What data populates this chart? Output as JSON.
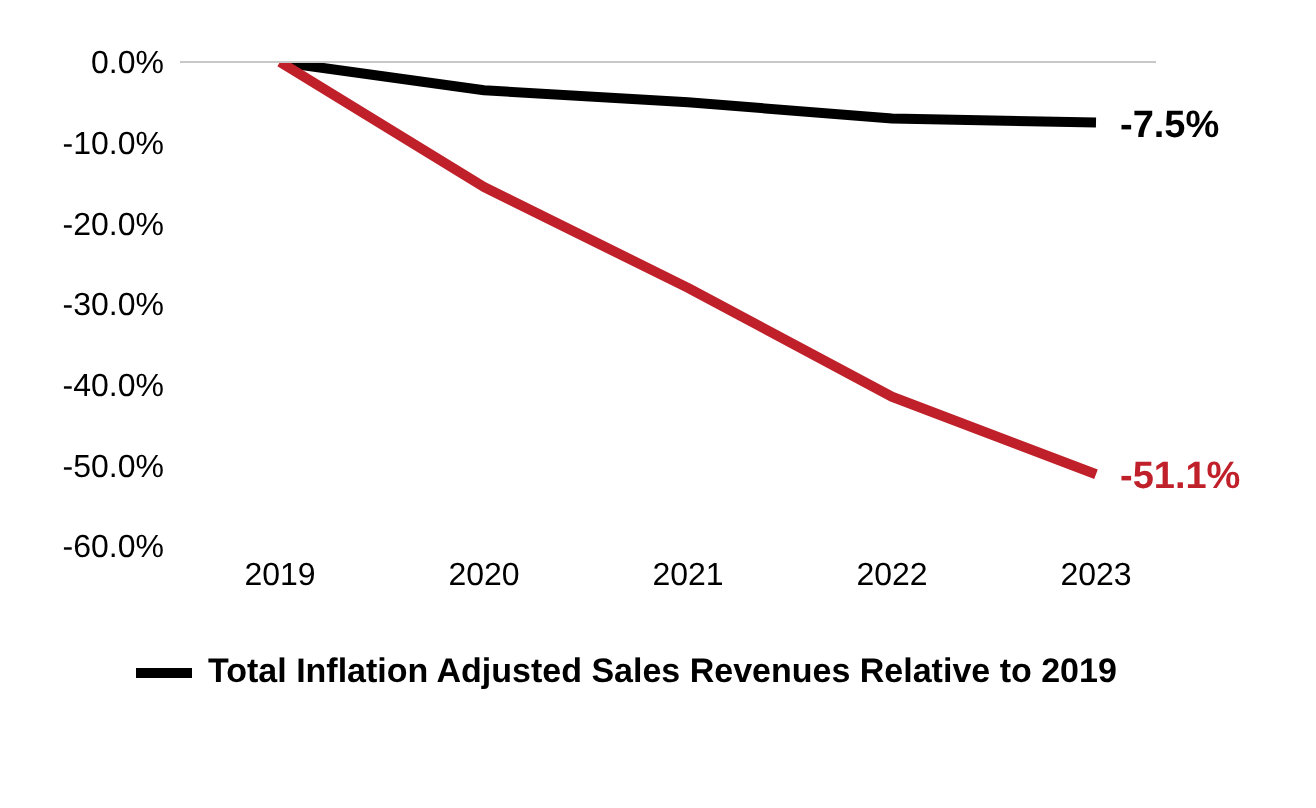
{
  "chart_data": {
    "type": "line",
    "categories": [
      "2019",
      "2020",
      "2021",
      "2022",
      "2023"
    ],
    "series": [
      {
        "name": "Total Inflation Adjusted Sales Revenues Relative to 2019",
        "color": "#000000",
        "values": [
          0,
          -3.5,
          -5,
          -7,
          -7.5
        ],
        "value_labels": [
          null,
          null,
          null,
          null,
          "-7.5%"
        ]
      },
      {
        "color": "#c0202a",
        "values": [
          0,
          -15.5,
          -28,
          -41.5,
          -51.1
        ],
        "value_labels": [
          null,
          null,
          null,
          null,
          "-51.1%"
        ]
      }
    ],
    "ylim": [
      -60,
      0
    ],
    "yticks": [
      {
        "value": 0,
        "label": "0.0%"
      },
      {
        "value": -10,
        "label": "-10.0%"
      },
      {
        "value": -20,
        "label": "-20.0%"
      },
      {
        "value": -30,
        "label": "-30.0%"
      },
      {
        "value": -40,
        "label": "-40.0%"
      },
      {
        "value": -50,
        "label": "-50.0%"
      },
      {
        "value": -60,
        "label": "-60.0%"
      }
    ],
    "grid": false,
    "legend": "bottom",
    "marker": "none",
    "line_style": "solid"
  }
}
